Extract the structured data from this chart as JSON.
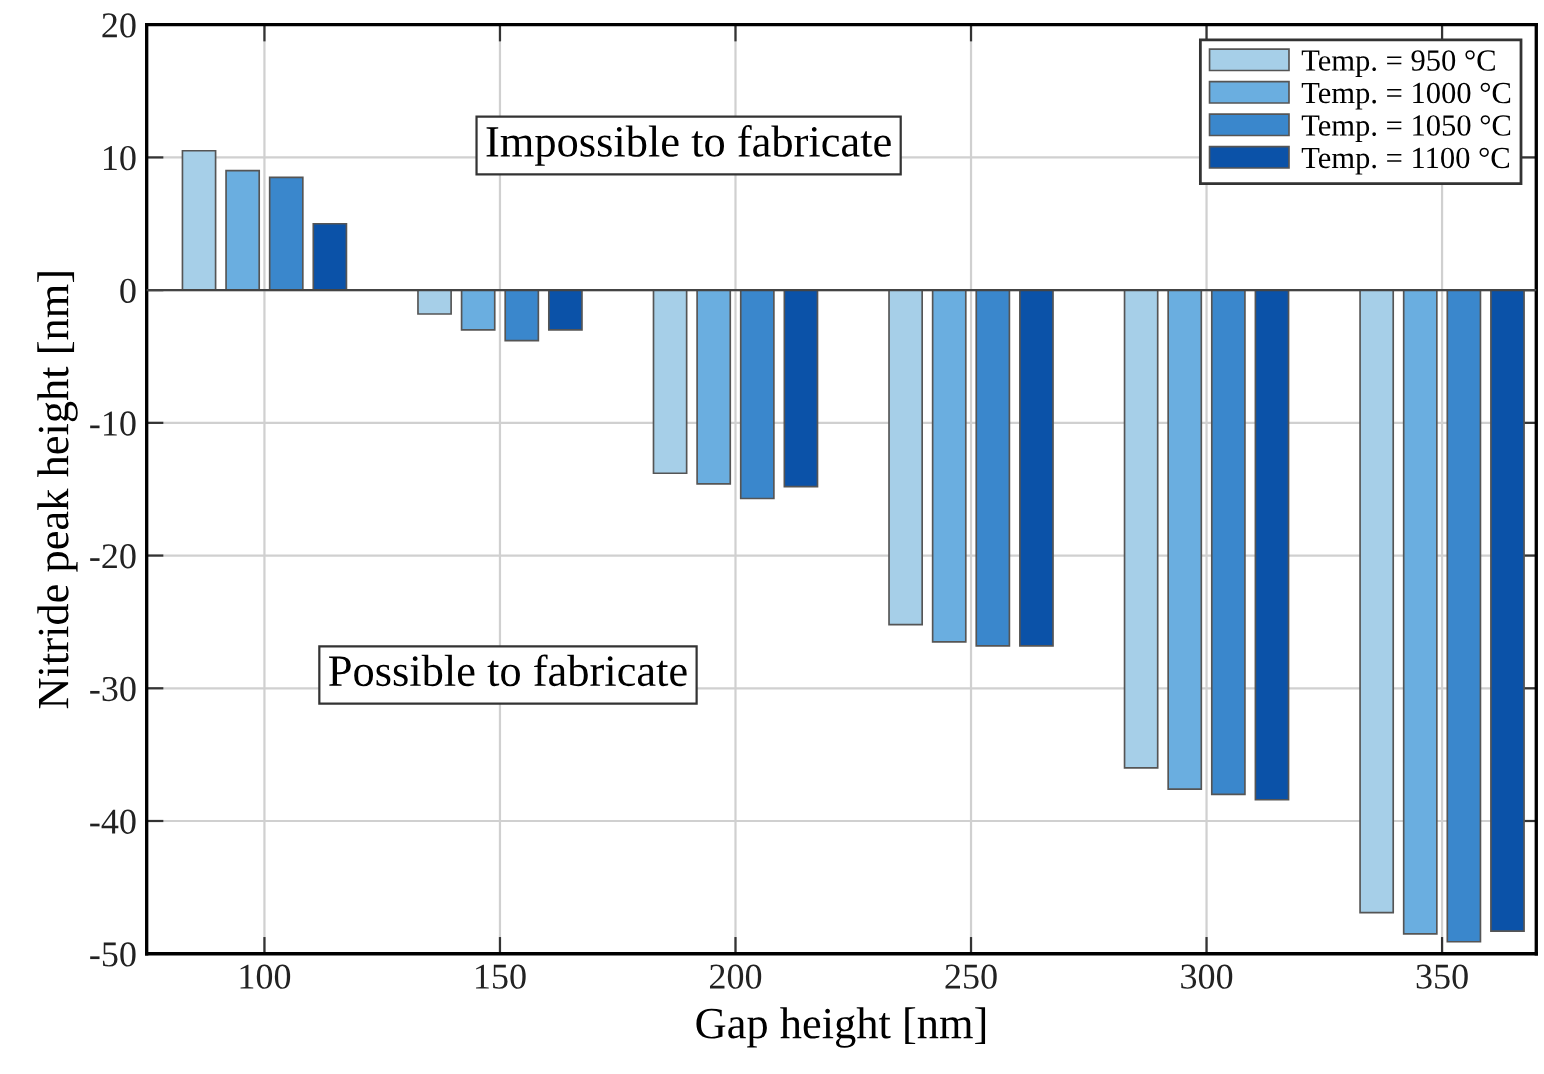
{
  "chart_data": {
    "type": "bar",
    "xlabel": "Gap height [nm]",
    "ylabel": "Nitride peak height [nm]",
    "x": [
      100,
      150,
      200,
      250,
      300,
      350
    ],
    "series": [
      {
        "name": "Temp. = 950 °C",
        "color": "#a6cfe8",
        "values": [
          10.5,
          -1.8,
          -13.8,
          -25.2,
          -36.0,
          -46.9
        ]
      },
      {
        "name": "Temp. = 1000 °C",
        "color": "#6aaee0",
        "values": [
          9.0,
          -3.0,
          -14.6,
          -26.5,
          -37.6,
          -48.5
        ]
      },
      {
        "name": "Temp. = 1050 °C",
        "color": "#3a87cc",
        "values": [
          8.5,
          -3.8,
          -15.7,
          -26.8,
          -38.0,
          -49.1
        ]
      },
      {
        "name": "Temp. = 1100 °C",
        "color": "#0b52a8",
        "values": [
          5.0,
          -3.0,
          -14.8,
          -26.8,
          -38.4,
          -48.3
        ]
      }
    ],
    "xlim": [
      75,
      370
    ],
    "xticks": [
      100,
      150,
      200,
      250,
      300,
      350
    ],
    "ylim": [
      -50,
      20
    ],
    "yticks": [
      -50,
      -40,
      -30,
      -20,
      -10,
      0,
      10,
      20
    ],
    "annotations": [
      "Impossible to fabricate",
      "Possible to fabricate"
    ],
    "grid": true,
    "legend": "top right"
  }
}
